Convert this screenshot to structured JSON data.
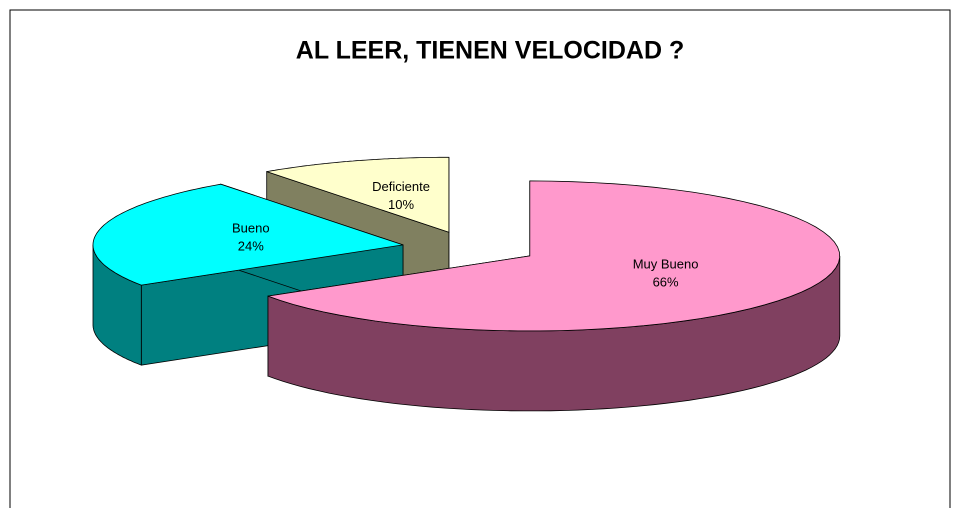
{
  "chart_data": {
    "type": "pie3d",
    "title": "AL LEER, TIENEN VELOCIDAD ?",
    "categories": [
      "Muy Bueno",
      "Bueno",
      "Deficiente"
    ],
    "values": [
      66,
      24,
      10
    ],
    "value_labels": [
      "66%",
      "24%",
      "10%"
    ],
    "colors": [
      "#ff99cc",
      "#00ffff",
      "#ffffcc"
    ],
    "side_colors": [
      "#804060",
      "#008080",
      "#808060"
    ]
  }
}
